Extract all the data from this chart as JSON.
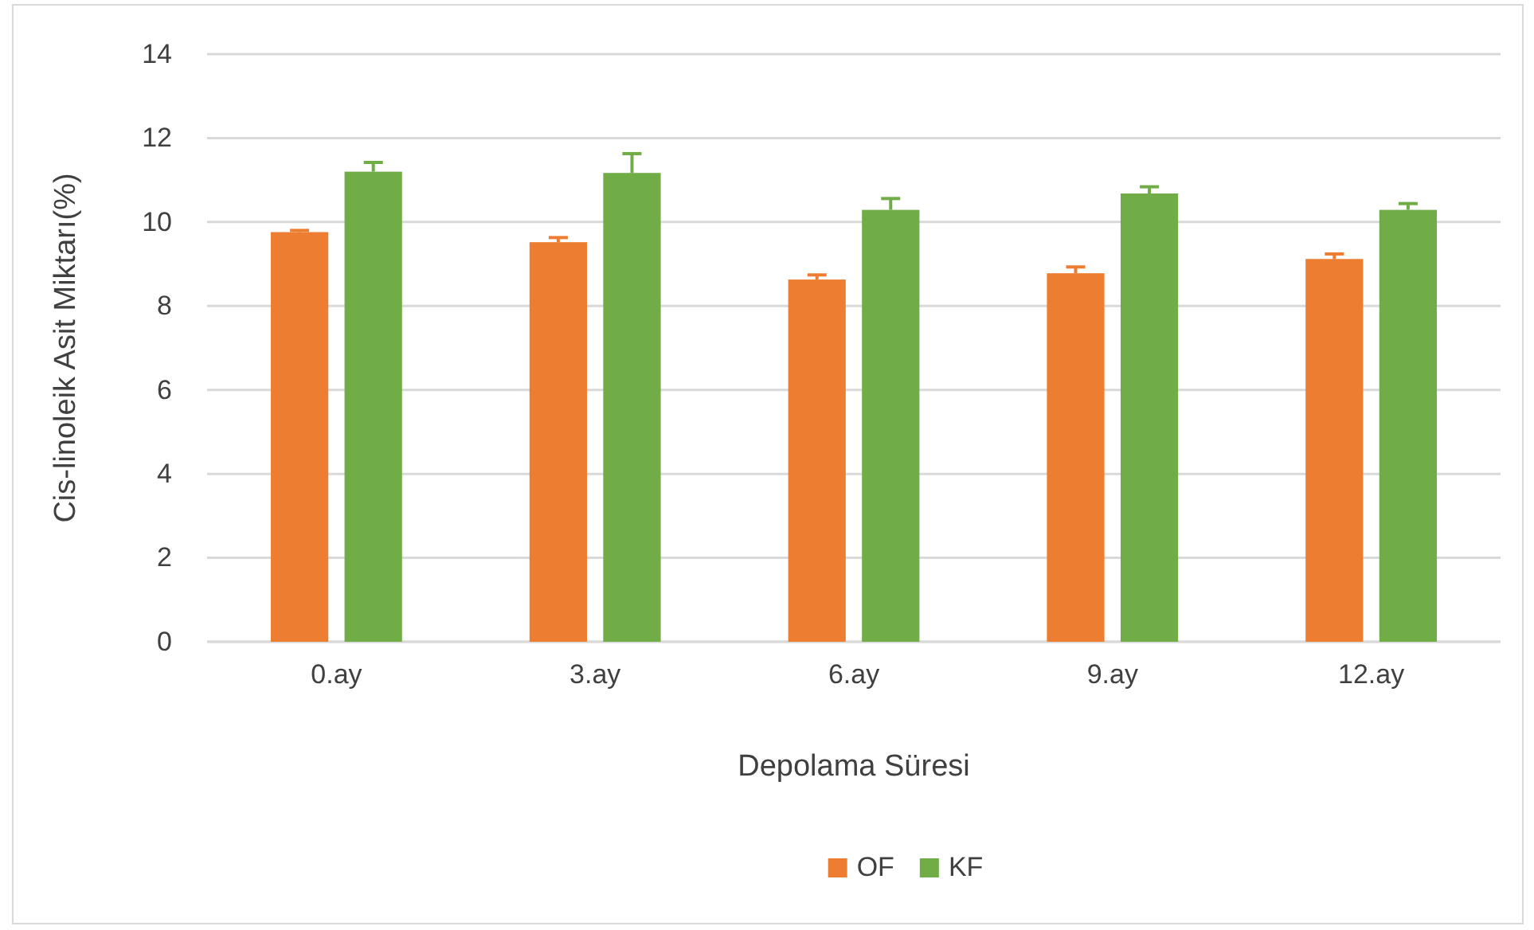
{
  "chart_data": {
    "type": "bar",
    "xlabel": "Depolama Süresi",
    "ylabel": "Cis-linoleik Asit Miktarı(%)",
    "categories": [
      "0.ay",
      "3.ay",
      "6.ay",
      "9.ay",
      "12.ay"
    ],
    "series": [
      {
        "name": "OF",
        "color": "#ed7d31",
        "values": [
          9.76,
          9.52,
          8.63,
          8.78,
          9.12
        ],
        "errors": [
          [
            9.76,
            9.8
          ],
          [
            9.52,
            9.63
          ],
          [
            8.63,
            8.74
          ],
          [
            8.78,
            8.93
          ],
          [
            9.12,
            9.24
          ]
        ]
      },
      {
        "name": "KF",
        "color": "#70ad47",
        "values": [
          11.2,
          11.17,
          10.29,
          10.68,
          10.29
        ],
        "errors": [
          [
            11.2,
            11.42
          ],
          [
            11.17,
            11.63
          ],
          [
            10.29,
            10.56
          ],
          [
            10.68,
            10.84
          ],
          [
            10.29,
            10.44
          ]
        ]
      }
    ],
    "ylim": [
      0,
      14
    ],
    "yticks": [
      0,
      2,
      4,
      6,
      8,
      10,
      12,
      14
    ],
    "grid": "y",
    "legend": "bottom"
  }
}
